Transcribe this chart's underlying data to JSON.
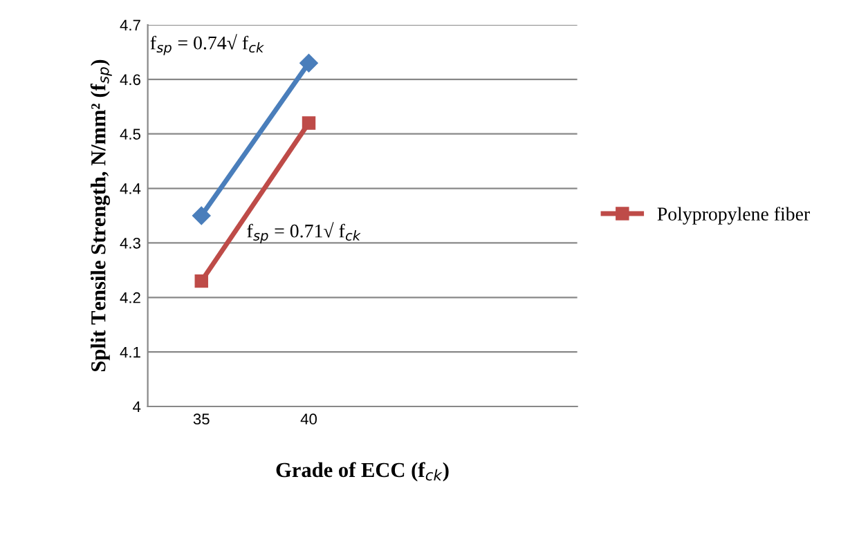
{
  "chart_data": {
    "type": "line",
    "xlabel": "Grade of ECC (f$_{ck}$)",
    "ylabel": "Split Tensile Strength, N/mm² (f$_{sp}$)",
    "categories": [
      "35",
      "40",
      null,
      null
    ],
    "series": [
      {
        "color": "#4a7ebb",
        "marker": "diamond",
        "values": [
          4.35,
          4.63,
          null,
          null
        ]
      },
      {
        "name": "Polypropylene fiber",
        "color": "#be4b48",
        "marker": "square",
        "values": [
          4.23,
          4.52,
          null,
          null
        ]
      }
    ],
    "annotations": [
      "f$_{sp}$ = 0.74√ f$_{ck}$",
      "f$_{sp}$ = 0.71√ f$_{ck}$"
    ],
    "ylim": [
      4,
      4.7
    ],
    "yticks": [
      4,
      4.1,
      4.2,
      4.3,
      4.4,
      4.5,
      4.6,
      4.7
    ],
    "grid": "y",
    "legend": "right"
  }
}
